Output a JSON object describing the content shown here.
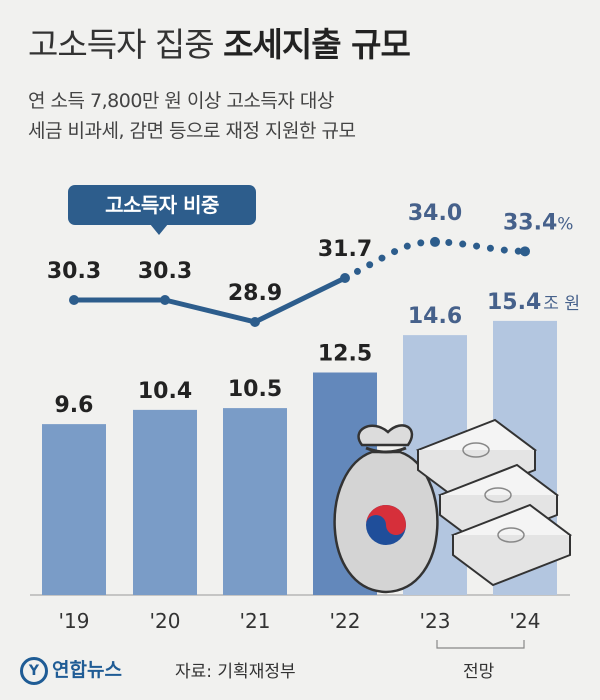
{
  "header": {
    "title_light": "고소득자 집중",
    "title_bold": "조세지출 규모",
    "subtitle_line1": "연 소득 7,800만 원 이상 고소득자 대상",
    "subtitle_line2": "세금 비과세, 감면 등으로 재정 지원한 규모"
  },
  "legend": {
    "line_label": "고소득자 비중"
  },
  "footer": {
    "logo_text": "연합뉴스",
    "source": "자료: 기획재정부",
    "forecast_label": "전망"
  },
  "colors": {
    "bar_actual": "#7a9cc7",
    "bar_2022": "#6388bb",
    "bar_forecast": "#b3c6e0",
    "line": "#2d5d8c",
    "background": "#f1f1ef"
  },
  "chart_data": {
    "type": "bar+line",
    "categories": [
      "'19",
      "'20",
      "'21",
      "'22",
      "'23",
      "'24"
    ],
    "bars": {
      "values": [
        9.6,
        10.4,
        10.5,
        12.5,
        14.6,
        15.4
      ],
      "labels": [
        "9.6",
        "10.4",
        "10.5",
        "12.5",
        "14.6",
        "15.4"
      ],
      "unit": "조 원"
    },
    "line": {
      "name": "고소득자 비중",
      "values": [
        30.3,
        30.3,
        28.9,
        31.7,
        34.0,
        33.4
      ],
      "labels": [
        "30.3",
        "30.3",
        "28.9",
        "31.7",
        "34.0",
        "33.4"
      ],
      "unit": "%"
    },
    "forecast_from_index": 4,
    "dashed_from_index": 3,
    "icon_names": [
      "money-bag-taegeuk-icon",
      "cash-stack-icon"
    ]
  }
}
